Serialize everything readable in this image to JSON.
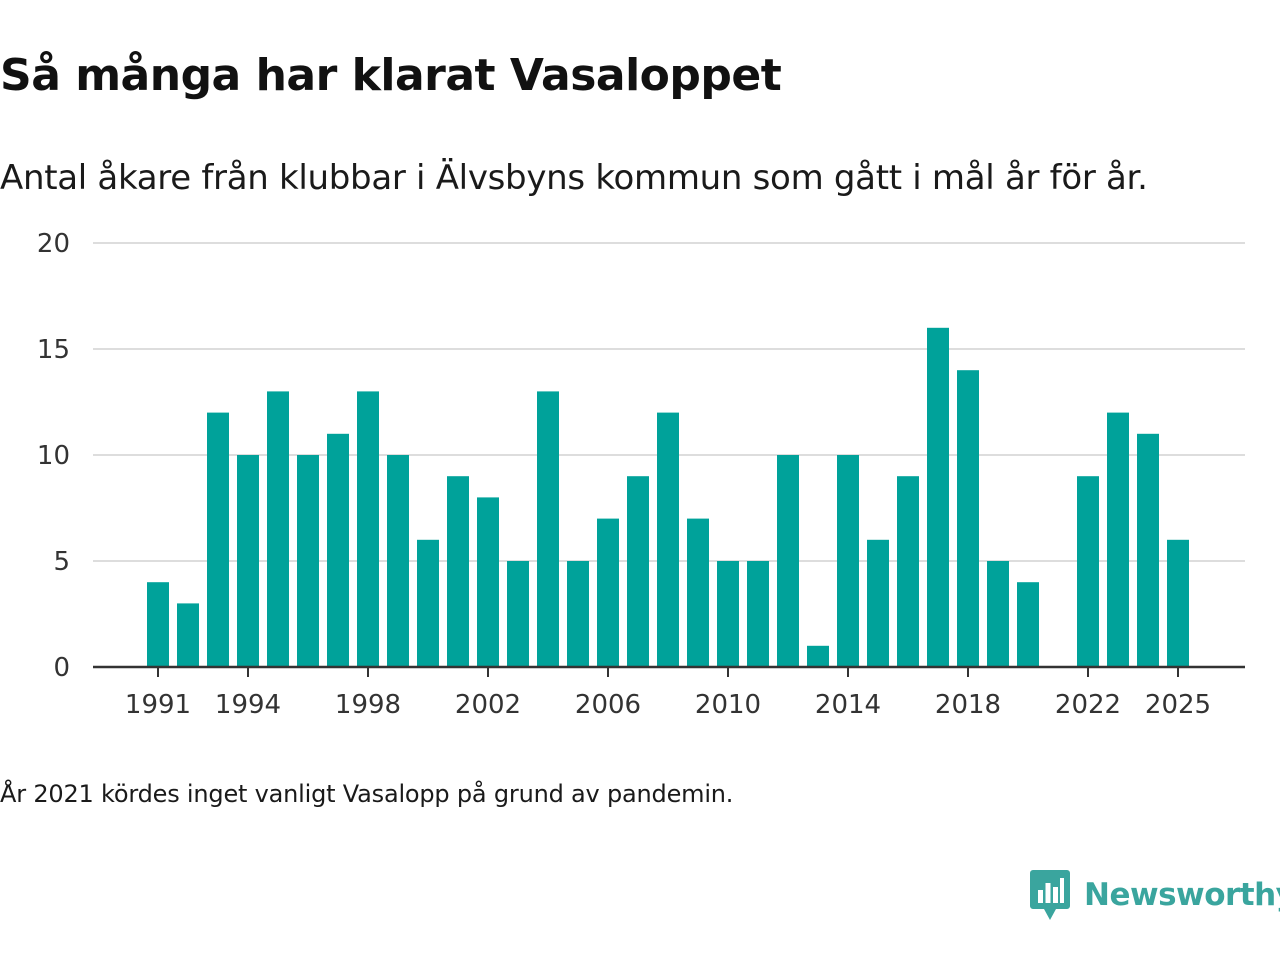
{
  "header": {
    "title": "Så många har klarat Vasaloppet",
    "subtitle": "Antal åkare från klubbar i Älvsbyns kommun som gått i mål år för år."
  },
  "footnote": "År 2021 kördes inget vanligt Vasalopp på grund av pandemin.",
  "brand": {
    "name": "Newsworthy",
    "icon": "newsworthy-logo-icon",
    "color": "#3aa59e"
  },
  "colors": {
    "bar": "#00a29a",
    "grid": "#dddddd",
    "axis": "#333333"
  },
  "chart_data": {
    "type": "bar",
    "title": "Så många har klarat Vasaloppet",
    "xlabel": "",
    "ylabel": "",
    "ylim": [
      0,
      20
    ],
    "yticks": [
      0,
      5,
      10,
      15,
      20
    ],
    "xticks": [
      1991,
      1994,
      1998,
      2002,
      2006,
      2010,
      2014,
      2018,
      2022,
      2025
    ],
    "categories": [
      1991,
      1992,
      1993,
      1994,
      1995,
      1996,
      1997,
      1998,
      1999,
      2000,
      2001,
      2002,
      2003,
      2004,
      2005,
      2006,
      2007,
      2008,
      2009,
      2010,
      2011,
      2012,
      2013,
      2014,
      2015,
      2016,
      2017,
      2018,
      2019,
      2020,
      2021,
      2022,
      2023,
      2024,
      2025
    ],
    "values": [
      4,
      3,
      12,
      10,
      13,
      10,
      11,
      13,
      10,
      6,
      9,
      8,
      5,
      13,
      5,
      7,
      9,
      12,
      7,
      5,
      5,
      10,
      1,
      10,
      6,
      9,
      16,
      14,
      5,
      4,
      null,
      9,
      12,
      11,
      6
    ],
    "grid": true
  }
}
